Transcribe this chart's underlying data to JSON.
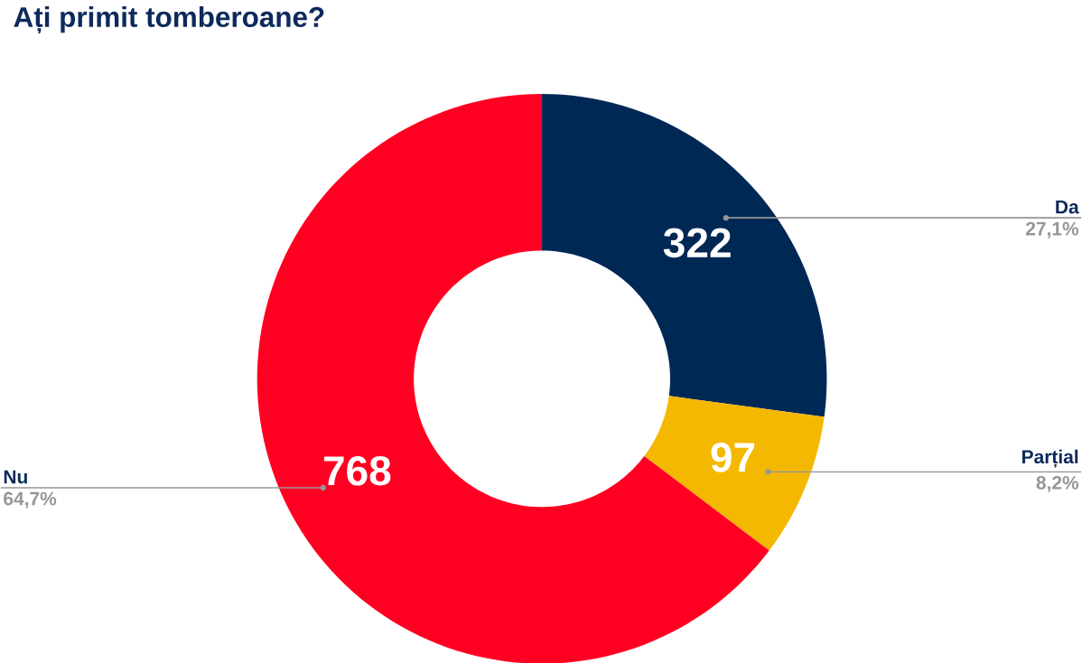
{
  "chart_data": {
    "type": "donut",
    "title": "Ați primit tomberoane?",
    "categories": [
      "Da",
      "Parțial",
      "Nu"
    ],
    "values": [
      322,
      97,
      768
    ],
    "colors": [
      "#002855",
      "#f5b800",
      "#ff0022"
    ],
    "data_labels": true,
    "annotations": [
      {
        "text": "27,1%",
        "x": "Da"
      },
      {
        "text": "8,2%",
        "x": "Parțial"
      },
      {
        "text": "64,7%",
        "x": "Nu"
      }
    ]
  }
}
